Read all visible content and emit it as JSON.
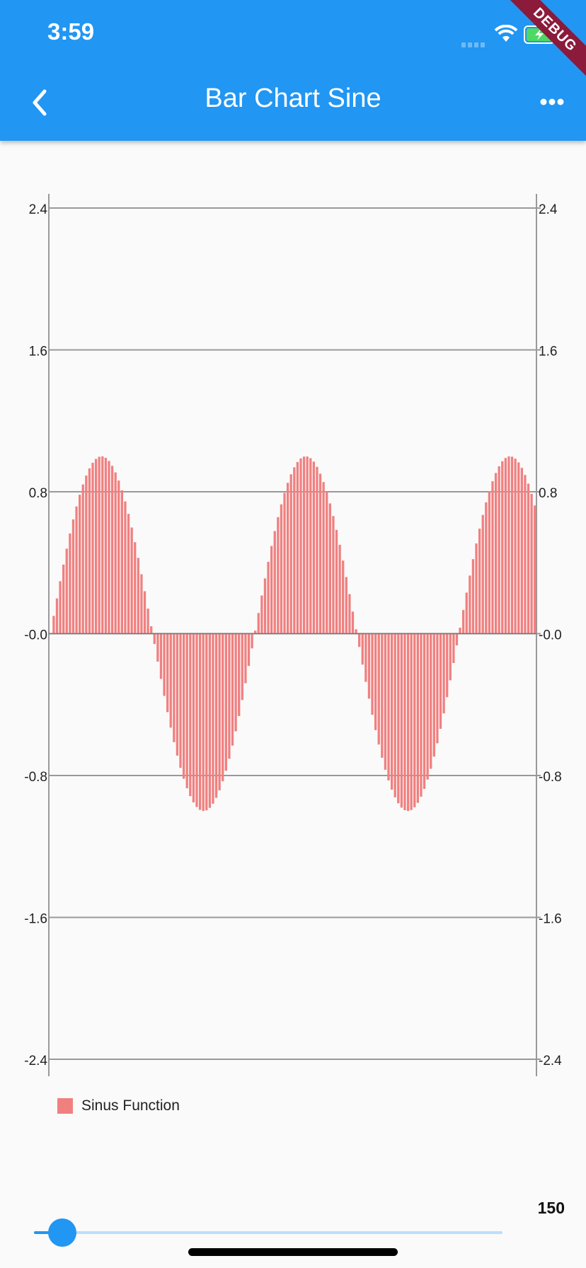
{
  "status_bar": {
    "time": "3:59",
    "debug_label": "DEBUG"
  },
  "app_bar": {
    "title": "Bar Chart Sine"
  },
  "colors": {
    "app_bar": "#2196f3",
    "bar": "#f08080",
    "grid": "#999999",
    "slider": "#2196f3",
    "slider_inactive": "#bbdefb"
  },
  "icons": {
    "back": "chevron-left-icon",
    "more": "more-horizontal-icon"
  },
  "chart_data": {
    "type": "bar",
    "bar_count": 150,
    "x_range": [
      0,
      149
    ],
    "ylim": [
      -2.4,
      2.4
    ],
    "y_ticks": [
      "2.4",
      "1.6",
      "0.8",
      "-0.0",
      "-0.8",
      "-1.6",
      "-2.4"
    ],
    "y_tick_values": [
      2.4,
      1.6,
      0.8,
      0.0,
      -0.8,
      -1.6,
      -2.4
    ],
    "right_axis": true,
    "grid": "horizontal",
    "series": [
      {
        "name": "Sinus Function",
        "color": "#f08080",
        "function": "y = sin(i * 0.1)",
        "i_step": 0.1
      }
    ],
    "legend": {
      "placement": "bottom-left"
    }
  },
  "slider": {
    "value": 150,
    "value_label": "150",
    "fraction": 0.06
  }
}
